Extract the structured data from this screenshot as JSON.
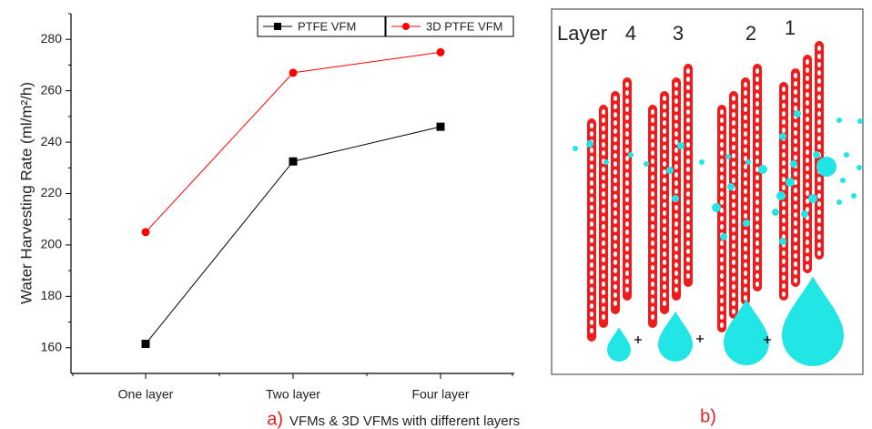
{
  "chart_data": {
    "type": "line",
    "y_label": "Water Harvesting Rate (ml/m²/h)",
    "caption_tag": "a)",
    "caption": "VFMs & 3D VFMs with different layers",
    "categories": [
      "One layer",
      "Two layer",
      "Four layer"
    ],
    "series": [
      {
        "name": "PTFE VFM",
        "color": "#000000",
        "marker": "square",
        "values": [
          161.5,
          232.5,
          246
        ]
      },
      {
        "name": "3D PTFE VFM",
        "color": "#ff0000",
        "marker": "circle",
        "values": [
          205,
          267,
          275
        ]
      }
    ],
    "ylim": [
      150,
      290
    ],
    "yticks": [
      160,
      180,
      200,
      220,
      240,
      260,
      280
    ],
    "legend": "top-right"
  },
  "diagram": {
    "label": "Layer",
    "layers": [
      "4",
      "3",
      "2",
      "1"
    ],
    "caption_tag": "b)"
  }
}
